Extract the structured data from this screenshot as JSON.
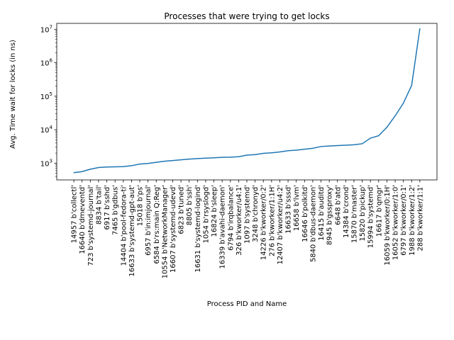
{
  "chart_data": {
    "type": "line",
    "title": "Processes that were trying to get locks",
    "xlabel": "Process PID and Name",
    "ylabel": "Avg. Time wait for locks (in ns)",
    "yscale": "log",
    "ylim": [
      316,
      15000000
    ],
    "y_ticks": [
      1000,
      10000,
      100000,
      1000000,
      10000000
    ],
    "y_tick_labels": [
      [
        "10",
        "3"
      ],
      [
        "10",
        "4"
      ],
      [
        "10",
        "5"
      ],
      [
        "10",
        "6"
      ],
      [
        "10",
        "7"
      ]
    ],
    "line_color": "#1f77b4",
    "grid": false,
    "x": [
      "14957 b'collectl'",
      "16640 b'dmeventd'",
      "723 b'systemd-journal'",
      "8834 b'tail'",
      "6917 b'sshd'",
      "7465 b'gdbus'",
      "14404 b'pool-fedora-ti'",
      "16633 b'systemd-gpt-aut'",
      "15018 b'ps'",
      "6957 b'in:imjournal'",
      "6584 b'rs:main Q:Reg'",
      "10554 b'NetworkManager'",
      "16607 b'systemd-udevd'",
      "6823 b'tuned'",
      "8805 b'ssh'",
      "16631 b'systemd-logind'",
      "1054 b'rsyslogd'",
      "16824 b'sleep'",
      "16339 b'avahi-daemon'",
      "6794 b'irqbalance'",
      "326 b'kworker/u4:1'",
      "1097 b'systemd'",
      "3248 b'chronyd'",
      "14226 b'kworker/0:2'",
      "276 b'kworker/1:1H'",
      "12407 b'kworker/u4:2'",
      "16633 b'sssd'",
      "16658 b'lvm'",
      "16646 b'polkitd'",
      "5840 b'dbus-daemon'",
      "16415 b'auditd'",
      "8945 b'gssproxy'",
      "6648 b'atd'",
      "14384 b'crond'",
      "15870 b'master'",
      "15820 b'pickup'",
      "15994 b'systemd'",
      "16617 b'qmgr'",
      "16059 b'kworker/0:1H'",
      "16052 b'kworker/1:0'",
      "6797 b'kworker/0:1'",
      "1988 b'kworker/1:2'",
      "288 b'kworker/1:1'"
    ],
    "values": [
      520,
      560,
      660,
      740,
      770,
      780,
      790,
      840,
      940,
      980,
      1060,
      1140,
      1200,
      1260,
      1320,
      1370,
      1410,
      1450,
      1490,
      1510,
      1560,
      1740,
      1800,
      1960,
      2040,
      2170,
      2360,
      2450,
      2620,
      2780,
      3150,
      3250,
      3350,
      3450,
      3550,
      3800,
      5600,
      6600,
      11800,
      26000,
      62000,
      210000,
      10500000
    ],
    "x_tick_labels": [
      "14957 b'collectl'",
      "16640 b'dmeventd'",
      "723 b'systemd-journal'",
      "8834 b'tail'",
      "6917 b'sshd'",
      "7465 b'gdbus'",
      "14404 b'pool-fedora-ti'",
      "16633 b'systemd-gpt-aut'",
      "15018 b'ps'",
      "6957 b'in:imjournal'",
      "6584 b'rs:main Q:Reg'",
      "10554 b'NetworkManager'",
      "16607 b'systemd-udevd'",
      "6823 b'tuned'",
      "8805 b'ssh'",
      "16631 b'systemd-logind'",
      "1054 b'rsyslogd'",
      "16824 b'sleep'",
      "16339 b'avahi-daemon'",
      "6794 b'irqbalance'",
      "326 b'kworker/u4:1'",
      "1097 b'systemd'",
      "3248 b'chronyd'",
      "14226 b'kworker/0:2'",
      "276 b'kworker/1:1H'",
      "12407 b'kworker/u4:2'",
      "16633 b'sssd'",
      "16658 b'lvm'",
      "16646 b'polkitd'",
      "5840 b'dbus-daemon'",
      "16415 b'auditd'",
      "8945 b'gssproxy'",
      "6648 b'atd'",
      "14384 b'crond'",
      "15870 b'master'",
      "15820 b'pickup'",
      "15994 b'systemd'",
      "16617 b'qmgr'",
      "16059 b'kworker/0:1H'",
      "16052 b'kworker/1:0'",
      "6797 b'kworker/0:1'",
      "1988 b'kworker/1:2'",
      "288 b'kworker/1:1'"
    ]
  }
}
